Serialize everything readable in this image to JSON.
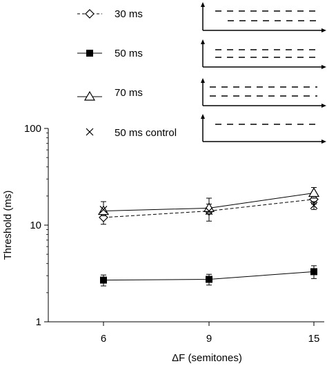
{
  "chart_data": {
    "type": "line",
    "xlabel": "ΔF (semitones)",
    "ylabel": "Threshold (ms)",
    "y_scale": "log",
    "ylim": [
      1,
      100
    ],
    "x_ticks": [
      "6",
      "9",
      "15"
    ],
    "y_ticks": [
      "1",
      "10",
      "100"
    ],
    "grid": false,
    "legend_position": "top-left",
    "series": [
      {
        "name": "30 ms",
        "marker": "diamond-open",
        "line": "dashed",
        "x": [
          6,
          9,
          15
        ],
        "y": [
          12.0,
          14.0,
          18.5
        ],
        "err_low": [
          10.2,
          11.0,
          16.5
        ],
        "err_high": [
          13.5,
          16.5,
          20.5
        ]
      },
      {
        "name": "50 ms",
        "marker": "square-filled",
        "line": "solid",
        "x": [
          6,
          9,
          15
        ],
        "y": [
          2.7,
          2.75,
          3.3
        ],
        "err_low": [
          2.35,
          2.4,
          2.8
        ],
        "err_high": [
          3.05,
          3.1,
          3.8
        ]
      },
      {
        "name": "70 ms",
        "marker": "triangle-open",
        "line": "solid",
        "x": [
          6,
          9,
          15
        ],
        "y": [
          14.0,
          15.0,
          21.5
        ],
        "err_low": [
          12.5,
          13.0,
          19.0
        ],
        "err_high": [
          17.5,
          19.0,
          24.5
        ]
      },
      {
        "name": "50 ms control",
        "marker": "x",
        "line": "none",
        "x": [
          6,
          9,
          15
        ],
        "y": [
          14.5,
          14.0,
          16.0
        ],
        "err_low": [
          null,
          null,
          14.5
        ],
        "err_high": [
          null,
          null,
          17.5
        ]
      }
    ]
  }
}
